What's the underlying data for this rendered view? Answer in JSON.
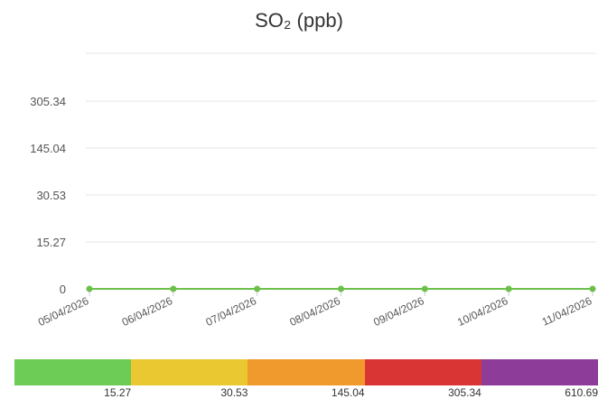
{
  "chart_data": {
    "type": "line",
    "title": "SO₂ (ppb)",
    "y_tick_labels": [
      "0",
      "15.27",
      "30.53",
      "145.04",
      "305.34"
    ],
    "x": [
      "05/04/2026",
      "06/04/2026",
      "07/04/2026",
      "08/04/2026",
      "09/04/2026",
      "10/04/2026",
      "11/04/2026"
    ],
    "series": [
      {
        "values": [
          0,
          0,
          0,
          0,
          0,
          0,
          0
        ],
        "color": "#6cc04a"
      }
    ],
    "grid": true,
    "legend_scale": {
      "labels": [
        "15.27",
        "30.53",
        "145.04",
        "305.34",
        "610.69"
      ],
      "colors": [
        "#6ccc55",
        "#e9c832",
        "#f09a2e",
        "#d93535",
        "#8e3c99"
      ]
    }
  }
}
